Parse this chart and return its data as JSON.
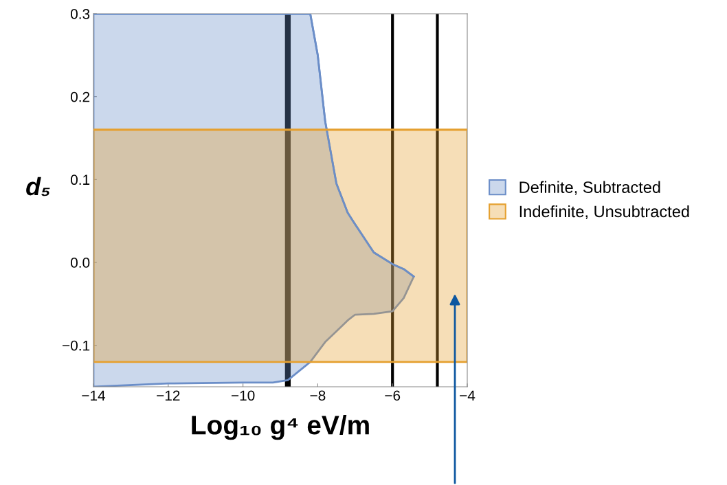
{
  "chart_data": {
    "type": "line",
    "xlabel": "Log₁₀ g⁴ eV/m",
    "ylabel": "d₅",
    "series": [
      {
        "name": "Definite, Subtracted",
        "color": "#6b8ec8",
        "x": [
          -14,
          -12,
          -10,
          -9.2,
          -8.8,
          -8.2,
          -8.0,
          -7.8,
          -7.5,
          -7.2,
          -7.0,
          -6.5,
          -6.0,
          -5.7,
          -5.43
        ],
        "values": [
          0.3,
          0.3,
          0.3,
          0.3,
          0.3,
          0.3,
          0.25,
          0.17,
          0.095,
          0.06,
          0.046,
          0.012,
          -0.002,
          -0.008,
          -0.017
        ],
        "upper": [
          0.3,
          0.3,
          0.3,
          0.3,
          0.3,
          0.3,
          0.25,
          0.17,
          0.095,
          0.06,
          0.046,
          0.012,
          -0.002,
          -0.008,
          -0.017
        ],
        "lower": [
          -0.15,
          -0.146,
          -0.145,
          -0.145,
          -0.142,
          -0.12,
          -0.108,
          -0.096,
          -0.083,
          -0.07,
          -0.063,
          -0.062,
          -0.059,
          -0.043,
          -0.017
        ]
      },
      {
        "name": "Indefinite, Unsubtracted",
        "color": "#e5a030",
        "x": [
          -14,
          -4
        ],
        "values": [
          0.16,
          0.16
        ],
        "upper": [
          0.16,
          0.16
        ],
        "lower": [
          -0.12,
          -0.12
        ]
      }
    ],
    "xlim": [
      -14,
      -4
    ],
    "ylim": [
      -0.15,
      0.3
    ],
    "xticks": [
      {
        "value": -14,
        "label": "−14"
      },
      {
        "value": -12,
        "label": "−12"
      },
      {
        "value": -10,
        "label": "−10"
      },
      {
        "value": -8,
        "label": "−8"
      },
      {
        "value": -6,
        "label": "−6"
      },
      {
        "value": -4,
        "label": "−4"
      }
    ],
    "yticks": [
      {
        "value": -0.1,
        "label": "−0.1"
      },
      {
        "value": 0,
        "label": "0.0"
      },
      0.1,
      0.2,
      0.3
    ],
    "ref_lines": [
      {
        "axis": "x",
        "value": -8.8,
        "color": "#000000"
      },
      {
        "axis": "x",
        "value": -6.0,
        "color": "#000000"
      },
      {
        "axis": "x",
        "value": -4.8,
        "color": "#000000"
      }
    ],
    "legend": "right",
    "grid": false
  }
}
